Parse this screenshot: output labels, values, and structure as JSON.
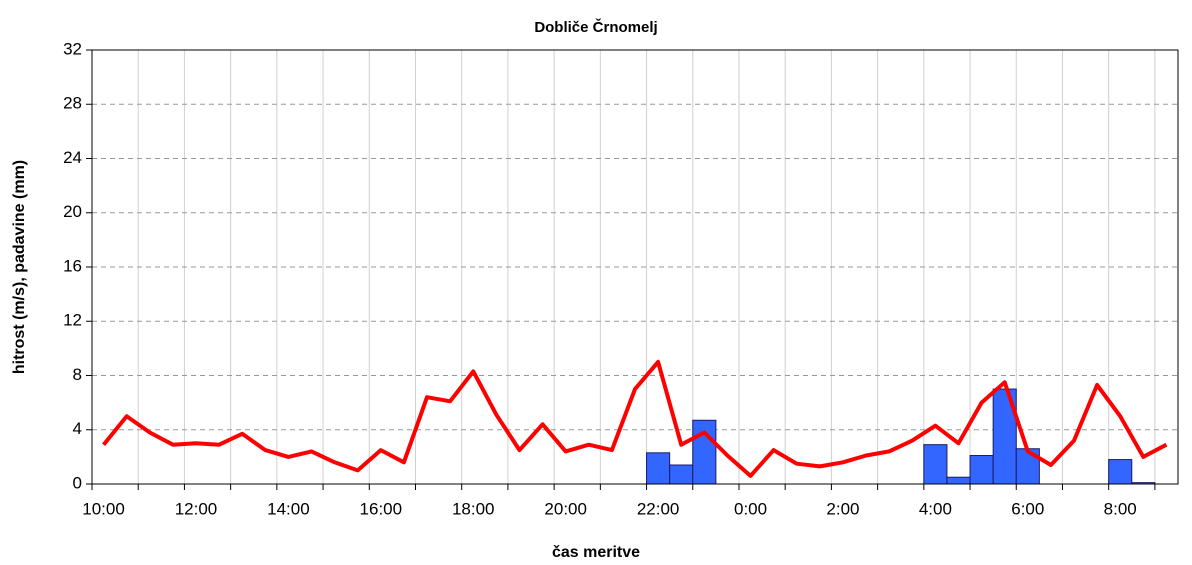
{
  "chart_data": {
    "type": "bar_line",
    "title": "Dobliče Črnomelj",
    "ylabel": "hitrost (m/s), padavine (mm)",
    "xlabel": "čas meritve",
    "categories": [
      "10:00",
      null,
      null,
      null,
      "12:00",
      null,
      null,
      null,
      "14:00",
      null,
      null,
      null,
      "16:00",
      null,
      null,
      null,
      "18:00",
      null,
      null,
      null,
      "20:00",
      null,
      null,
      null,
      "22:00",
      null,
      null,
      null,
      "0:00",
      null,
      null,
      null,
      "2:00",
      null,
      null,
      null,
      "4:00",
      null,
      null,
      null,
      "6:00",
      null,
      null,
      null,
      "8:00",
      null,
      null
    ],
    "series": [
      {
        "type": "bar",
        "color": "#3366ff",
        "values": [
          0,
          0,
          0,
          0,
          0,
          0,
          0,
          0,
          0,
          0,
          0,
          0,
          0,
          0,
          0,
          0,
          0,
          0,
          0,
          0,
          0,
          0,
          0,
          0,
          2.3,
          1.4,
          4.7,
          0,
          0,
          0,
          0,
          0,
          0,
          0,
          0,
          0,
          2.9,
          0.5,
          2.1,
          7.0,
          2.6,
          0,
          0,
          0,
          1.8,
          0.1,
          0
        ]
      },
      {
        "type": "line",
        "color": "#ff0000",
        "values": [
          2.9,
          5.0,
          3.8,
          2.9,
          3.0,
          2.9,
          3.7,
          2.5,
          2.0,
          2.4,
          1.6,
          1.0,
          2.5,
          1.6,
          6.4,
          6.1,
          8.3,
          5.1,
          2.5,
          4.4,
          2.4,
          2.9,
          2.5,
          7.0,
          9.0,
          2.9,
          3.8,
          2.1,
          0.6,
          2.5,
          1.5,
          1.3,
          1.6,
          2.1,
          2.4,
          3.2,
          4.3,
          3.0,
          6.0,
          7.5,
          2.4,
          1.4,
          3.2,
          7.3,
          5.0,
          2.0,
          2.9
        ]
      }
    ],
    "ylim": [
      0,
      32
    ],
    "yticks": [
      0,
      4,
      8,
      12,
      16,
      20,
      24,
      28,
      32
    ],
    "grid": true
  }
}
